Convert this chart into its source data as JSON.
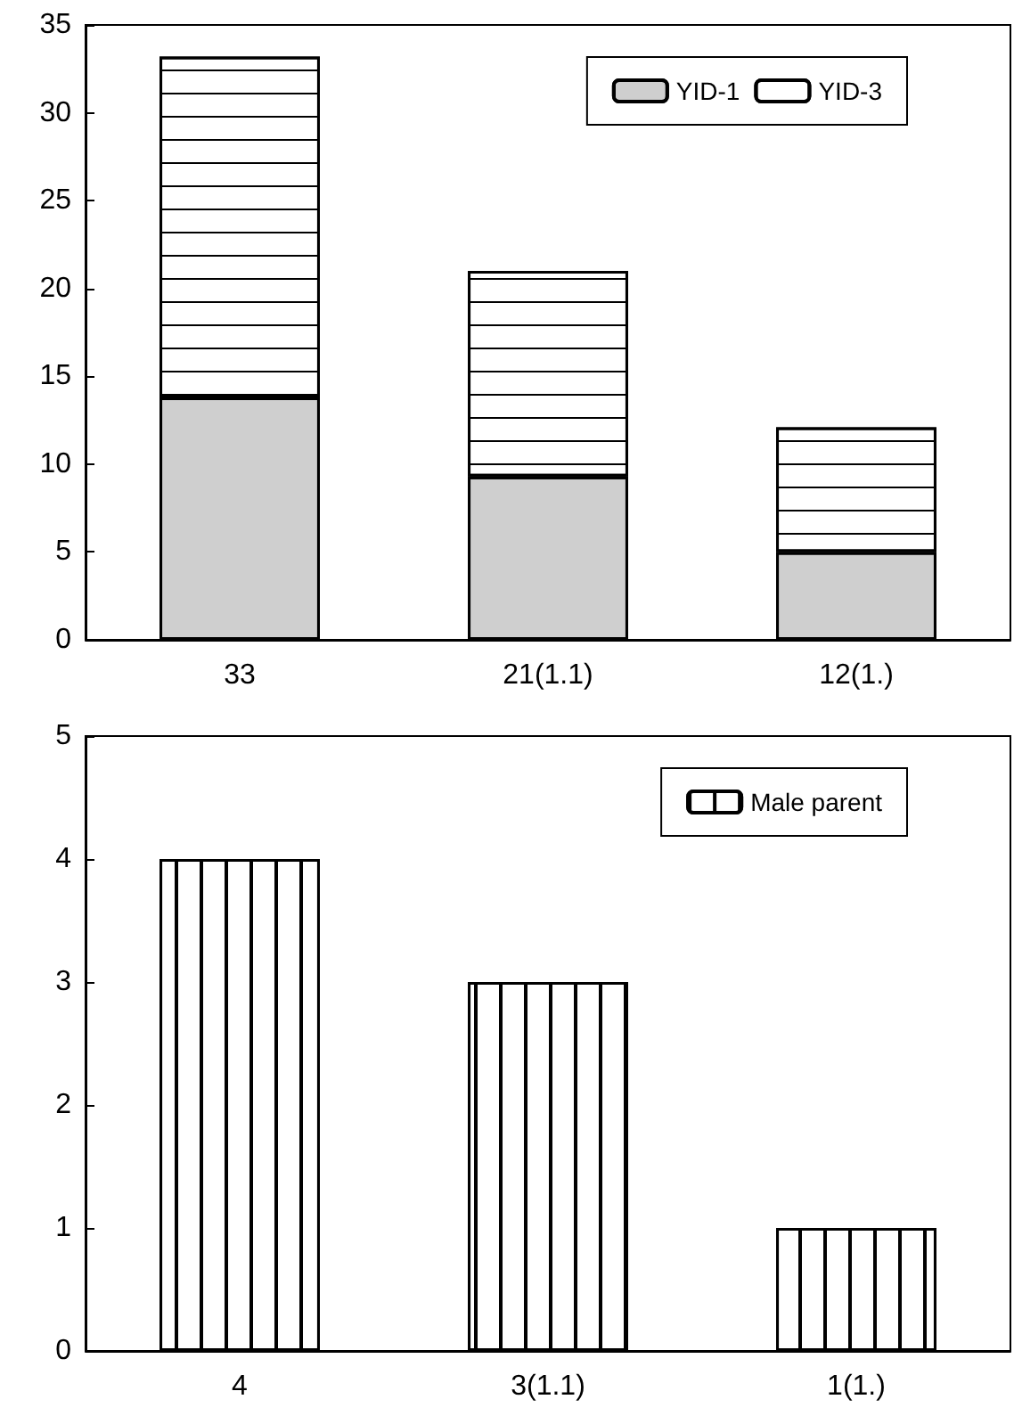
{
  "chart_data": [
    {
      "type": "bar",
      "stacked": true,
      "categories": [
        "33",
        "21(1.1)",
        "12(1.)"
      ],
      "series": [
        {
          "name": "YID-1",
          "color": "#cfcfcf",
          "values": [
            13.8,
            9.3,
            5.0
          ]
        },
        {
          "name": "YID-3",
          "color": "#ffffff",
          "values": [
            19.4,
            11.7,
            7.1
          ]
        }
      ],
      "ylim": [
        0,
        35
      ],
      "yticks": [
        0,
        5,
        10,
        15,
        20,
        25,
        30,
        35
      ],
      "grid": false,
      "legend": "top right"
    },
    {
      "type": "bar",
      "categories": [
        "4",
        "3(1.1)",
        "1(1.)"
      ],
      "series": [
        {
          "name": "Male parent",
          "color": "#ffffff",
          "values": [
            4,
            3,
            1
          ]
        }
      ],
      "ylim": [
        0,
        5
      ],
      "yticks": [
        0,
        1,
        2,
        3,
        4,
        5
      ],
      "grid": false,
      "legend": "top right"
    }
  ]
}
